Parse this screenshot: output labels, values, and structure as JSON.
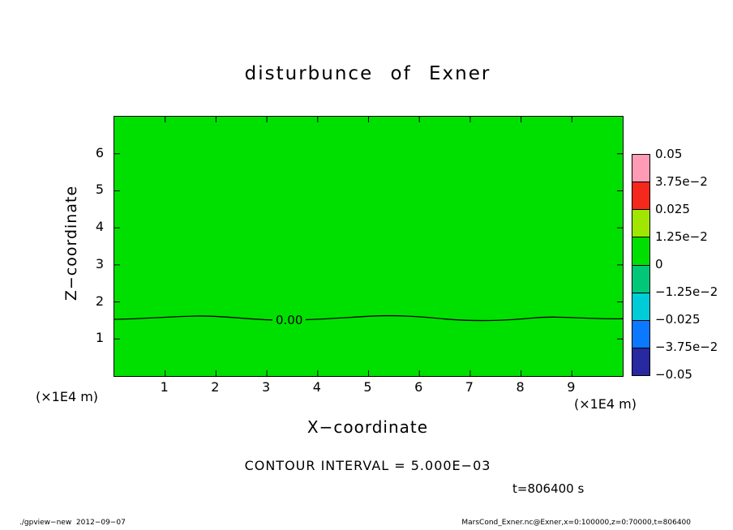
{
  "title": "disturbunce of Exner",
  "axes": {
    "x_label": "X−coordinate",
    "y_label": "Z−coordinate",
    "x_unit": "(×1E4 m)",
    "y_unit": "(×1E4 m)",
    "x_ticks": [
      "1",
      "2",
      "3",
      "4",
      "5",
      "6",
      "7",
      "8",
      "9"
    ],
    "y_ticks": [
      "1",
      "2",
      "3",
      "4",
      "5",
      "6"
    ]
  },
  "plot": {
    "fill_color": "#00e000",
    "frame_color": "#000000",
    "contour_line_color": "#000000"
  },
  "contour": {
    "line_label": "0.00",
    "interval_text": "CONTOUR INTERVAL = 5.000E−03"
  },
  "time_text": "t=806400 s",
  "colorbar": {
    "labels": [
      "0.05",
      "3.75e−2",
      "0.025",
      "1.25e−2",
      "0",
      "−1.25e−2",
      "−0.025",
      "−3.75e−2",
      "−0.05"
    ],
    "colors": [
      "#ff9bb4",
      "#f5281e",
      "#a0e600",
      "#00e000",
      "#00c878",
      "#00ccd8",
      "#0a78ff",
      "#2828a0"
    ]
  },
  "footer": {
    "left": "./gpview−new  2012−09−07",
    "right": "MarsCond_Exner.nc@Exner,x=0:100000,z=0:70000,t=806400"
  },
  "chart_data": {
    "type": "heatmap",
    "title": "disturbunce of Exner",
    "xlabel": "X-coordinate (×1E4 m)",
    "ylabel": "Z-coordinate (×1E4 m)",
    "xlim": [
      0,
      10
    ],
    "ylim": [
      0,
      7
    ],
    "x_ticks": [
      1,
      2,
      3,
      4,
      5,
      6,
      7,
      8,
      9
    ],
    "y_ticks": [
      1,
      2,
      3,
      4,
      5,
      6
    ],
    "grid": false,
    "legend_position": "right-colorbar",
    "contour_interval": 0.005,
    "colorbar_levels": [
      0.05,
      0.0375,
      0.025,
      0.0125,
      0,
      -0.0125,
      -0.025,
      -0.0375,
      -0.05
    ],
    "field_summary": "Exner disturbance is approximately 0 over the whole domain; entire plot filled with the 0-to-1.25e-2 green tone band",
    "zero_contour": {
      "level": 0.0,
      "label": "0.00",
      "mean_z": 1.55,
      "wiggle_amplitude_z": 0.08,
      "label_x_position": 3.3,
      "x_extent": [
        0,
        10
      ]
    },
    "time_seconds": 806400
  }
}
